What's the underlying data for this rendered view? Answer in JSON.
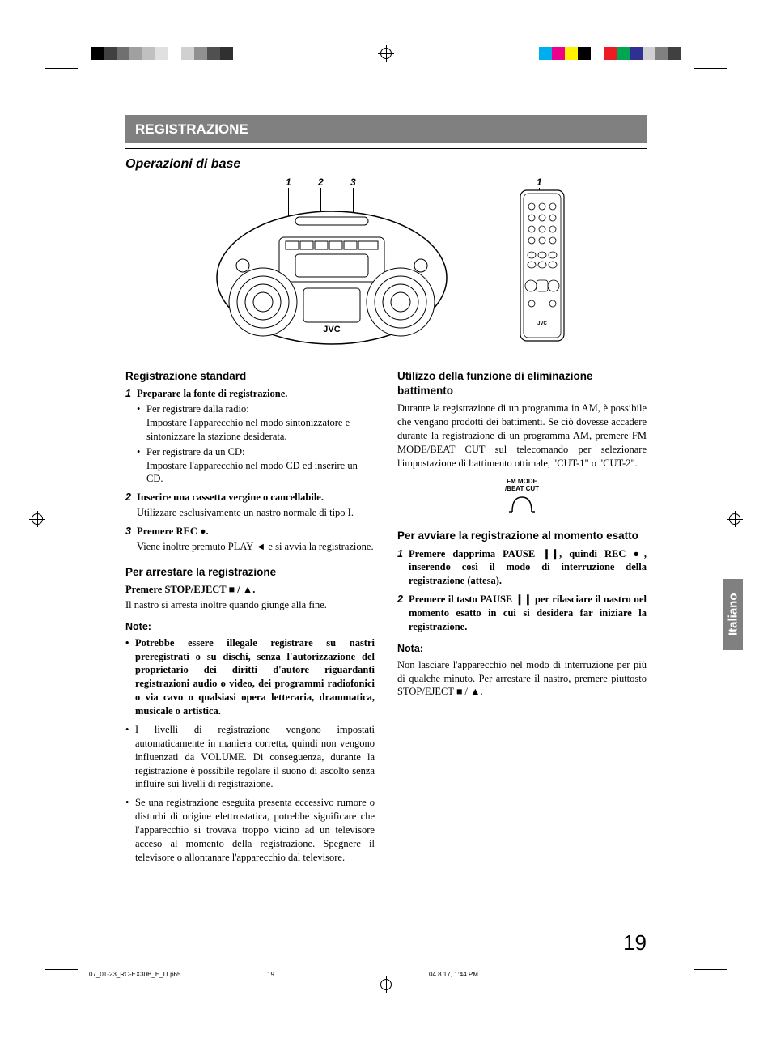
{
  "printmarks": {
    "colorbars": {
      "left": [
        "#000000",
        "#404040",
        "#707070",
        "#a0a0a0",
        "#c0c0c0",
        "#e0e0e0",
        "#ffffff",
        "#d0d0d0",
        "#909090",
        "#505050",
        "#303030"
      ],
      "right": [
        "#00aeef",
        "#ec008c",
        "#fff200",
        "#000000",
        "#ffffff",
        "#ed1c24",
        "#00a651",
        "#2e3192",
        "#d0d0d0",
        "#808080",
        "#404040"
      ]
    }
  },
  "header": {
    "title": "REGISTRAZIONE",
    "subtitle": "Operazioni di base"
  },
  "diagram": {
    "callouts_main": [
      "1",
      "2",
      "3"
    ],
    "callout_remote": "1",
    "brand": "JVC"
  },
  "left_column": {
    "h_standard": "Registrazione standard",
    "steps": [
      {
        "num": "1",
        "title": "Preparare la fonte di registrazione.",
        "bullets": [
          {
            "lead": "Per registrare dalla radio:",
            "body": "Impostare l'apparecchio nel modo sintonizzatore e sintonizzare la stazione desiderata."
          },
          {
            "lead": "Per registrare da un CD:",
            "body": "Impostare l'apparecchio nel modo CD ed inserire un CD."
          }
        ]
      },
      {
        "num": "2",
        "title": "Inserire una cassetta vergine o cancellabile.",
        "after": "Utilizzare esclusivamente un nastro normale di tipo I."
      },
      {
        "num": "3",
        "title_pre": "Premere REC ",
        "title_sym": "●",
        "title_post": ".",
        "after_pre": "Viene inoltre premuto PLAY ",
        "after_sym": "◄",
        "after_post": " e si avvia la registrazione."
      }
    ],
    "h_stop": "Per arrestare la registrazione",
    "stop_line_pre": "Premere STOP/EJECT ",
    "stop_sym1": "■",
    "stop_mid": " / ",
    "stop_sym2": "▲",
    "stop_post": ".",
    "stop_after": "Il nastro si arresta inoltre quando giunge alla fine.",
    "note_h": "Note:",
    "notes": [
      "Potrebbe essere illegale registrare su nastri preregistrati o su dischi, senza l'autorizzazione del proprietario dei diritti d'autore riguardanti registrazioni audio o video, dei programmi radiofonici o via cavo o qualsiasi opera letteraria, drammatica, musicale o artistica.",
      "I livelli di registrazione vengono impostati automaticamente in maniera corretta, quindi non vengono influenzati da VOLUME. Di conseguenza, durante la registrazione è possibile regolare il suono di ascolto senza influire sui livelli di registrazione.",
      "Se una registrazione eseguita presenta eccessivo rumore o disturbi di origine elettrostatica, potrebbe significare che l'apparecchio si trovava troppo vicino ad un televisore acceso al momento della registrazione. Spegnere il televisore o allontanare l'apparecchio dal televisore."
    ]
  },
  "right_column": {
    "h_beat": "Utilizzo della funzione di eliminazione battimento",
    "beat_body": "Durante la registrazione di un programma in AM, è possibile che vengano prodotti dei battimenti. Se ciò dovesse accadere durante la registrazione di un programma AM, premere FM MODE/BEAT CUT sul telecomando per selezionare l'impostazione di battimento ottimale, \"CUT-1\" o \"CUT-2\".",
    "fm_label1": "FM MODE",
    "fm_label2": "/BEAT CUT",
    "h_start": "Per avviare la registrazione al momento esatto",
    "steps": [
      {
        "num": "1",
        "pre": "Premere dapprima PAUSE ",
        "sym1": "❙❙",
        "mid": ", quindi REC ",
        "sym2": "●",
        "post": ", inserendo così il modo di interruzione della registrazione (attesa)."
      },
      {
        "num": "2",
        "pre": "Premere il tasto PAUSE ",
        "sym1": "❙❙",
        "post": " per rilasciare il nastro nel momento esatto in cui si desidera far iniziare la registrazione."
      }
    ],
    "note_h": "Nota:",
    "note_pre": "Non lasciare l'apparecchio nel modo di interruzione per più di qualche minuto. Per arrestare il nastro, premere piuttosto STOP/EJECT ",
    "note_sym1": "■",
    "note_mid": " / ",
    "note_sym2": "▲",
    "note_post": "."
  },
  "tab": "Italiano",
  "page_number": "19",
  "footer": {
    "filename": "07_01-23_RC-EX30B_E_IT.p65",
    "page": "19",
    "datetime": "04.8.17, 1:44 PM"
  }
}
